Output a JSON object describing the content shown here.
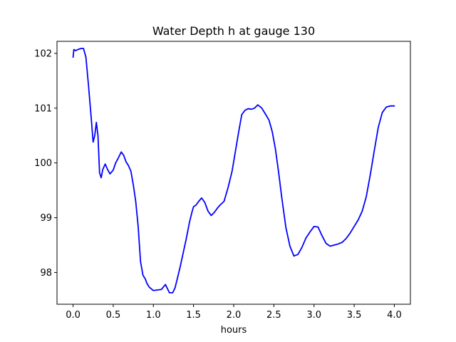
{
  "chart_data": {
    "type": "line",
    "title": "Water Depth h at gauge 130",
    "xlabel": "hours",
    "ylabel": "",
    "xlim": [
      -0.2,
      4.2
    ],
    "ylim": [
      97.42,
      102.22
    ],
    "xticks": [
      0.0,
      0.5,
      1.0,
      1.5,
      2.0,
      2.5,
      3.0,
      3.5,
      4.0
    ],
    "xtick_labels": [
      "0.0",
      "0.5",
      "1.0",
      "1.5",
      "2.0",
      "2.5",
      "3.0",
      "3.5",
      "4.0"
    ],
    "yticks": [
      98,
      99,
      100,
      101,
      102
    ],
    "ytick_labels": [
      "98",
      "99",
      "100",
      "101",
      "102"
    ],
    "grid": false,
    "legend": "none",
    "series": [
      {
        "color": "#0000ff",
        "x": [
          0.0,
          0.01,
          0.03,
          0.06,
          0.1,
          0.13,
          0.16,
          0.19,
          0.22,
          0.25,
          0.27,
          0.29,
          0.31,
          0.33,
          0.35,
          0.37,
          0.4,
          0.43,
          0.46,
          0.5,
          0.53,
          0.56,
          0.6,
          0.63,
          0.66,
          0.69,
          0.72,
          0.75,
          0.78,
          0.81,
          0.84,
          0.87,
          0.9,
          0.92,
          0.95,
          1.0,
          1.05,
          1.1,
          1.15,
          1.2,
          1.24,
          1.27,
          1.3,
          1.33,
          1.37,
          1.41,
          1.45,
          1.48,
          1.5,
          1.53,
          1.56,
          1.6,
          1.64,
          1.68,
          1.72,
          1.76,
          1.8,
          1.83,
          1.88,
          1.93,
          1.98,
          2.02,
          2.06,
          2.1,
          2.14,
          2.18,
          2.22,
          2.26,
          2.3,
          2.35,
          2.4,
          2.44,
          2.48,
          2.52,
          2.56,
          2.6,
          2.65,
          2.7,
          2.75,
          2.8,
          2.85,
          2.9,
          2.95,
          3.0,
          3.05,
          3.1,
          3.15,
          3.2,
          3.25,
          3.3,
          3.35,
          3.4,
          3.45,
          3.5,
          3.55,
          3.6,
          3.65,
          3.7,
          3.75,
          3.8,
          3.85,
          3.9,
          3.95,
          4.0
        ],
        "y": [
          101.93,
          102.07,
          102.05,
          102.07,
          102.09,
          102.09,
          101.93,
          101.45,
          100.93,
          100.38,
          100.5,
          100.74,
          100.5,
          99.82,
          99.73,
          99.88,
          99.98,
          99.88,
          99.8,
          99.87,
          100.0,
          100.08,
          100.2,
          100.14,
          100.02,
          99.95,
          99.85,
          99.6,
          99.3,
          98.85,
          98.2,
          97.95,
          97.88,
          97.8,
          97.73,
          97.67,
          97.68,
          97.69,
          97.78,
          97.63,
          97.63,
          97.72,
          97.9,
          98.08,
          98.35,
          98.62,
          98.92,
          99.1,
          99.2,
          99.23,
          99.29,
          99.36,
          99.28,
          99.12,
          99.04,
          99.1,
          99.18,
          99.23,
          99.3,
          99.55,
          99.85,
          100.2,
          100.55,
          100.88,
          100.96,
          100.99,
          100.98,
          101.0,
          101.06,
          101.0,
          100.88,
          100.78,
          100.57,
          100.25,
          99.82,
          99.35,
          98.82,
          98.48,
          98.3,
          98.33,
          98.46,
          98.63,
          98.74,
          98.84,
          98.83,
          98.67,
          98.53,
          98.48,
          98.5,
          98.52,
          98.55,
          98.62,
          98.72,
          98.84,
          98.96,
          99.12,
          99.38,
          99.78,
          100.22,
          100.65,
          100.92,
          101.02,
          101.04,
          101.04
        ]
      }
    ]
  }
}
